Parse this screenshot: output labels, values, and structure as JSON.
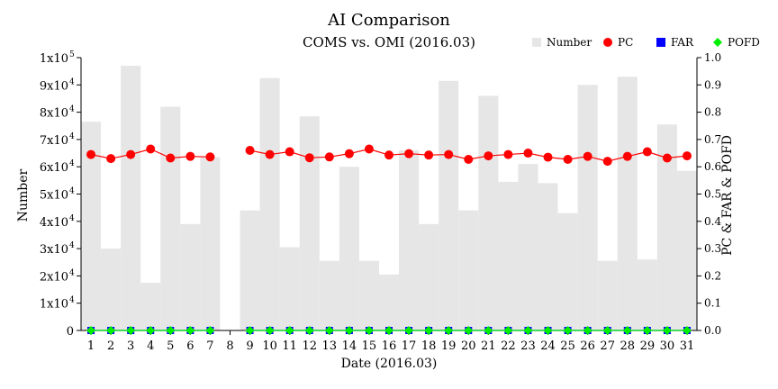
{
  "chart_data": {
    "type": "bar",
    "title": "AI Comparison",
    "subtitle": "COMS vs. OMI (2016.03)",
    "xlabel": "Date (2016.03)",
    "ylabel_left": "Number",
    "ylabel_right": "PC & FAR & POFD",
    "categories": [
      "1",
      "2",
      "3",
      "4",
      "5",
      "6",
      "7",
      "8",
      "9",
      "10",
      "11",
      "12",
      "13",
      "14",
      "15",
      "16",
      "17",
      "18",
      "19",
      "20",
      "21",
      "22",
      "23",
      "24",
      "25",
      "26",
      "27",
      "28",
      "29",
      "30",
      "31"
    ],
    "ylim_left": [
      0,
      100000
    ],
    "ylim_right": [
      0.0,
      1.0
    ],
    "y_ticks_left": [
      {
        "value": 0,
        "label": "0",
        "sup": ""
      },
      {
        "value": 10000,
        "label": "1x10",
        "sup": "4"
      },
      {
        "value": 20000,
        "label": "2x10",
        "sup": "4"
      },
      {
        "value": 30000,
        "label": "3x10",
        "sup": "4"
      },
      {
        "value": 40000,
        "label": "4x10",
        "sup": "4"
      },
      {
        "value": 50000,
        "label": "5x10",
        "sup": "4"
      },
      {
        "value": 60000,
        "label": "6x10",
        "sup": "4"
      },
      {
        "value": 70000,
        "label": "7x10",
        "sup": "4"
      },
      {
        "value": 80000,
        "label": "8x10",
        "sup": "4"
      },
      {
        "value": 90000,
        "label": "9x10",
        "sup": "4"
      },
      {
        "value": 100000,
        "label": "1x10",
        "sup": "5"
      }
    ],
    "y_ticks_right": [
      "0.0",
      "0.1",
      "0.2",
      "0.3",
      "0.4",
      "0.5",
      "0.6",
      "0.7",
      "0.8",
      "0.9",
      "1.0"
    ],
    "series": [
      {
        "name": "Number",
        "type": "bar",
        "axis": "left",
        "color": "#e6e6e6",
        "values": [
          76500,
          30000,
          97000,
          17500,
          82000,
          39000,
          63500,
          0,
          44000,
          92500,
          30500,
          78500,
          25500,
          60000,
          25500,
          20500,
          66000,
          39000,
          91500,
          44000,
          86000,
          54500,
          61000,
          54000,
          43000,
          90000,
          25500,
          93000,
          26000,
          75500,
          58500
        ]
      },
      {
        "name": "PC",
        "type": "line",
        "axis": "right",
        "color": "#ff0000",
        "marker": "circle",
        "values": [
          0.645,
          0.63,
          0.645,
          0.665,
          0.632,
          0.638,
          0.636,
          null,
          0.66,
          0.645,
          0.655,
          0.633,
          0.636,
          0.648,
          0.665,
          0.643,
          0.648,
          0.643,
          0.645,
          0.627,
          0.64,
          0.645,
          0.65,
          0.635,
          0.627,
          0.638,
          0.62,
          0.638,
          0.655,
          0.632,
          0.64
        ]
      },
      {
        "name": "FAR",
        "type": "line",
        "axis": "right",
        "color": "#0000ff",
        "marker": "square",
        "values": [
          0,
          0,
          0,
          0,
          0,
          0,
          0,
          null,
          0,
          0,
          0,
          0,
          0,
          0,
          0,
          0,
          0,
          0,
          0,
          0,
          0,
          0,
          0,
          0,
          0,
          0,
          0,
          0,
          0,
          0,
          0
        ]
      },
      {
        "name": "POFD",
        "type": "line",
        "axis": "right",
        "color": "#00ee00",
        "marker": "diamond",
        "values": [
          0,
          0,
          0,
          0,
          0,
          0,
          0,
          null,
          0,
          0,
          0,
          0,
          0,
          0,
          0,
          0,
          0,
          0,
          0,
          0,
          0,
          0,
          0,
          0,
          0,
          0,
          0,
          0,
          0,
          0,
          0
        ]
      }
    ],
    "legend": [
      {
        "label": "Number",
        "color": "#e6e6e6",
        "marker": "square"
      },
      {
        "label": "PC",
        "color": "#ff0000",
        "marker": "circle"
      },
      {
        "label": "FAR",
        "color": "#0000ff",
        "marker": "square"
      },
      {
        "label": "POFD",
        "color": "#00ee00",
        "marker": "diamond"
      }
    ],
    "legend_position": "top-right",
    "grid": false
  }
}
